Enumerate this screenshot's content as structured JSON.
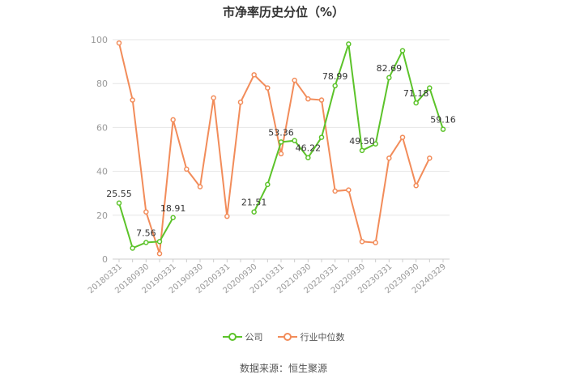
{
  "title": "市净率历史分位（%）",
  "source": "数据来源：恒生聚源",
  "colors": {
    "company": "#5cc32a",
    "industry": "#f28c5a",
    "grid": "#e6e6e6",
    "axis": "#999999"
  },
  "chart_data": {
    "type": "line",
    "title": "市净率历史分位（%）",
    "ylim": [
      0,
      100
    ],
    "yticks": [
      0,
      20,
      40,
      60,
      80,
      100
    ],
    "x_labels_shown": [
      "20180331",
      "20180930",
      "20190331",
      "20190930",
      "20200331",
      "20200930",
      "20210331",
      "20210930",
      "20220331",
      "20220930",
      "20230331",
      "20230930",
      "20240329"
    ],
    "x": [
      "20180331",
      "20180630",
      "20180930",
      "20181231",
      "20190331",
      "20190630",
      "20190930",
      "20191231",
      "20200331",
      "20200630",
      "20200930",
      "20201231",
      "20210331",
      "20210630",
      "20210930",
      "20211231",
      "20220331",
      "20220630",
      "20220930",
      "20221231",
      "20230331",
      "20230630",
      "20230930",
      "20231231",
      "20240329"
    ],
    "series": [
      {
        "name": "公司",
        "values": [
          25.55,
          5.0,
          7.56,
          8.0,
          18.91,
          null,
          null,
          null,
          null,
          null,
          21.51,
          34.0,
          53.36,
          54.0,
          46.22,
          55.5,
          78.99,
          98.0,
          49.5,
          52.5,
          82.69,
          95.0,
          71.18,
          78.0,
          59.16
        ]
      },
      {
        "name": "行业中位数",
        "values": [
          98.5,
          72.5,
          21.5,
          2.5,
          63.5,
          41.0,
          33.0,
          73.5,
          19.5,
          71.5,
          84.0,
          78.0,
          48.0,
          81.5,
          73.0,
          72.5,
          31.0,
          31.5,
          8.0,
          7.5,
          46.0,
          55.5,
          33.5,
          46.0,
          null
        ]
      }
    ],
    "data_labels": [
      {
        "index": 0,
        "text": "25.55"
      },
      {
        "index": 2,
        "text": "7.56"
      },
      {
        "index": 4,
        "text": "18.91"
      },
      {
        "index": 10,
        "text": "21.51"
      },
      {
        "index": 12,
        "text": "53.36"
      },
      {
        "index": 14,
        "text": "46.22"
      },
      {
        "index": 16,
        "text": "78.99"
      },
      {
        "index": 18,
        "text": "49.50"
      },
      {
        "index": 20,
        "text": "82.69"
      },
      {
        "index": 22,
        "text": "71.18"
      },
      {
        "index": 24,
        "text": "59.16"
      }
    ],
    "legend": {
      "position": "bottom",
      "items": [
        "公司",
        "行业中位数"
      ]
    },
    "grid": true
  }
}
